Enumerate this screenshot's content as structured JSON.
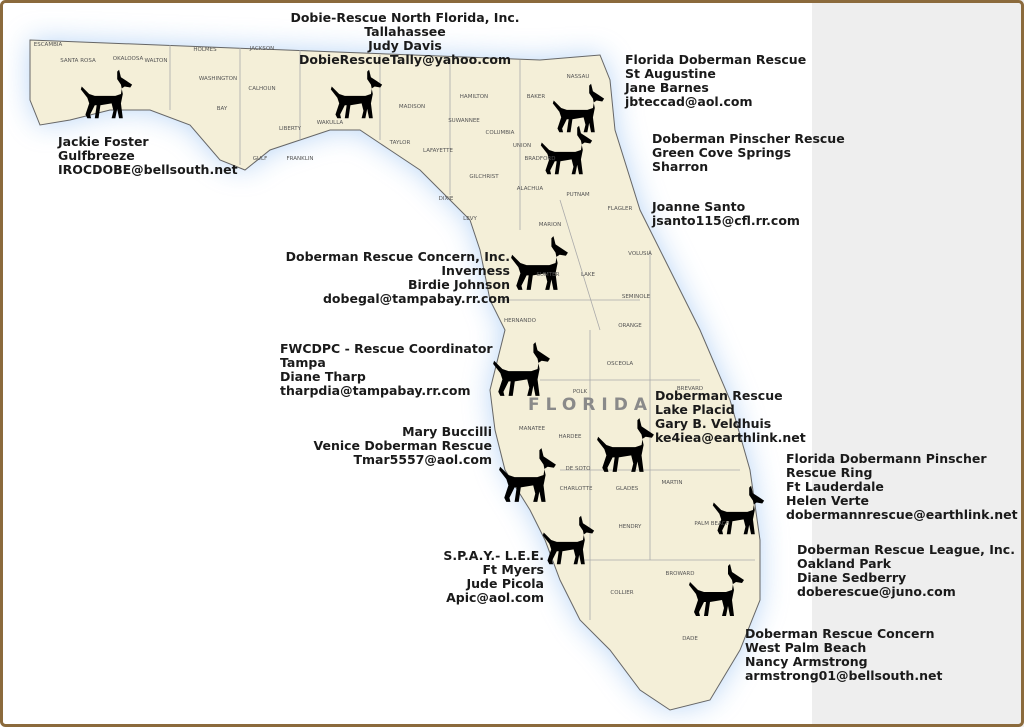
{
  "map_label": "FLORIDA",
  "counties": [
    "ESCAMBIA",
    "SANTA ROSA",
    "OKALOOSA",
    "WALTON",
    "HOLMES",
    "JACKSON",
    "WASHINGTON",
    "BAY",
    "CALHOUN",
    "LIBERTY",
    "GULF",
    "FRANKLIN",
    "WAKULLA",
    "MADISON",
    "HAMILTON",
    "TAYLOR",
    "SUWANNEE",
    "LAFAYETTE",
    "COLUMBIA",
    "BAKER",
    "NASSAU",
    "UNION",
    "BRADFORD",
    "DIXIE",
    "GILCHRIST",
    "ALACHUA",
    "PUTNAM",
    "FLAGLER",
    "LEVY",
    "MARION",
    "VOLUSIA",
    "SUMTER",
    "LAKE",
    "SEMINOLE",
    "HERNANDO",
    "ORANGE",
    "OSCEOLA",
    "BREVARD",
    "POLK",
    "MANATEE",
    "HARDEE",
    "DE SOTO",
    "CHARLOTTE",
    "GLADES",
    "MARTIN",
    "PALM BEACH",
    "HENDRY",
    "COLLIER",
    "BROWARD",
    "DADE"
  ],
  "rescues": [
    {
      "lines": [
        "Dobie-Rescue North Florida, Inc.",
        "Tallahassee",
        "Judy Davis",
        "DobieRescueTally@yahoo.com"
      ]
    },
    {
      "lines": [
        "Florida Doberman Rescue",
        "St Augustine",
        "Jane Barnes",
        "jbteccad@aol.com"
      ]
    },
    {
      "lines": [
        "Jackie Foster",
        "Gulfbreeze",
        "IROCDOBE@bellsouth.net"
      ]
    },
    {
      "lines": [
        "Doberman Pinscher Rescue",
        "Green Cove Springs",
        "Sharron"
      ]
    },
    {
      "lines": [
        "Joanne Santo",
        "jsanto115@cfl.rr.com"
      ]
    },
    {
      "lines": [
        "Doberman Rescue Concern, Inc.",
        "Inverness",
        "Birdie Johnson",
        "dobegal@tampabay.rr.com"
      ]
    },
    {
      "lines": [
        "FWCDPC - Rescue Coordinator",
        "Tampa",
        "Diane Tharp",
        "tharpdia@tampabay.rr.com"
      ]
    },
    {
      "lines": [
        "Doberman Rescue",
        "Lake Placid",
        "Gary B. Veldhuis",
        "ke4iea@earthlink.net"
      ]
    },
    {
      "lines": [
        "Mary Buccilli",
        "Venice Doberman Rescue",
        "Tmar5557@aol.com"
      ]
    },
    {
      "lines": [
        "Florida Dobermann Pinscher",
        "Rescue Ring",
        "Ft Lauderdale",
        "Helen Verte",
        "dobermannrescue@earthlink.net"
      ]
    },
    {
      "lines": [
        "Doberman Rescue League, Inc.",
        "Oakland Park",
        "Diane Sedberry",
        "doberescue@juno.com"
      ]
    },
    {
      "lines": [
        "S.P.A.Y.- L.E.E.",
        "Ft Myers",
        "Jude Picola",
        "Apic@aol.com"
      ]
    },
    {
      "lines": [
        "Doberman Rescue Concern",
        "West Palm Beach",
        "Nancy Armstrong",
        "armstrong01@bellsouth.net"
      ]
    }
  ]
}
